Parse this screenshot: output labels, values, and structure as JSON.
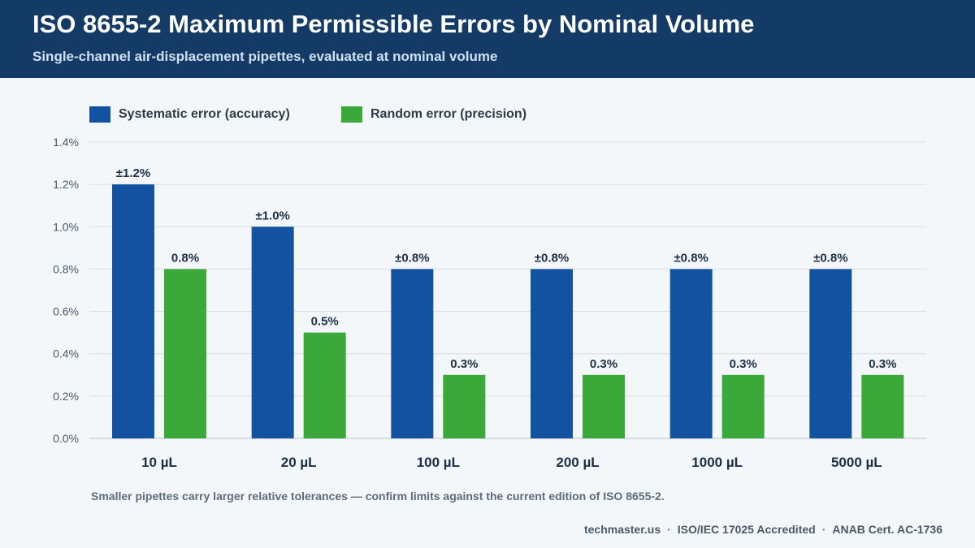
{
  "header": {
    "title": "ISO 8655-2 Maximum Permissible Errors by Nominal Volume",
    "subtitle": "Single-channel air-displacement pipettes, evaluated at nominal volume"
  },
  "colors": {
    "header_bg": "#143a66",
    "systematic": "#1352a0",
    "random": "#3aa93a",
    "label_text": "#1d2f45"
  },
  "chart_data": {
    "type": "bar",
    "categories": [
      "10 µL",
      "20 µL",
      "100 µL",
      "200 µL",
      "1000 µL",
      "5000 µL"
    ],
    "series": [
      {
        "name": "Systematic error (accuracy)",
        "values": [
          1.2,
          1.0,
          0.8,
          0.8,
          0.8,
          0.8
        ],
        "data_labels": [
          "±1.2%",
          "±1.0%",
          "±0.8%",
          "±0.8%",
          "±0.8%",
          "±0.8%"
        ]
      },
      {
        "name": "Random error (precision)",
        "values": [
          0.8,
          0.5,
          0.3,
          0.3,
          0.3,
          0.3
        ],
        "data_labels": [
          "0.8%",
          "0.5%",
          "0.3%",
          "0.3%",
          "0.3%",
          "0.3%"
        ]
      }
    ],
    "y_ticks": [
      "0.0%",
      "0.2%",
      "0.4%",
      "0.6%",
      "0.8%",
      "1.0%",
      "1.2%",
      "1.4%"
    ],
    "ylim": [
      0,
      1.4
    ],
    "legend_position": "top-left",
    "grid": true
  },
  "note": "Smaller pipettes carry larger relative tolerances — confirm limits against the current edition of ISO 8655-2.",
  "footer": {
    "site": "techmaster.us",
    "separator": "·",
    "accreditation": "ISO/IEC 17025 Accredited",
    "cert": "ANAB Cert. AC-1736"
  }
}
